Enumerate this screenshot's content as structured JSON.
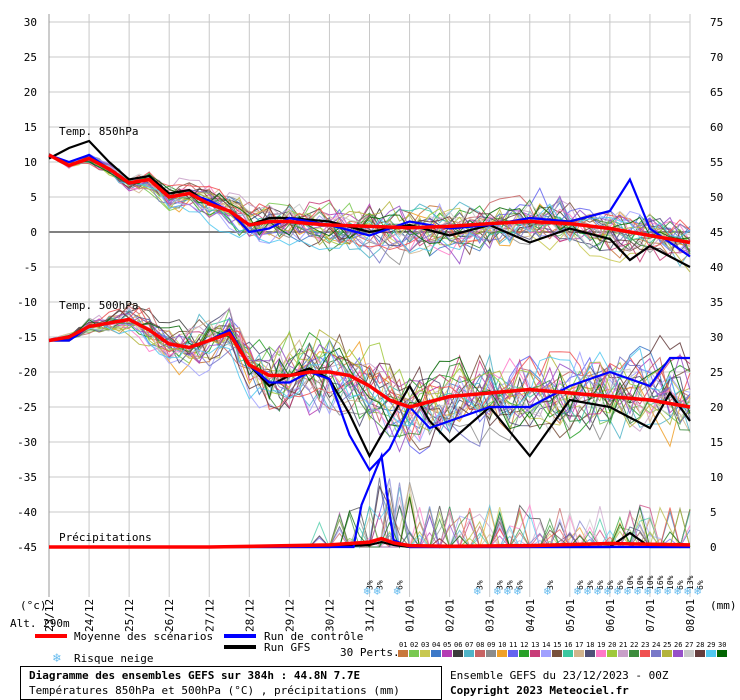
{
  "chart_data": {
    "type": "line",
    "left_axis": {
      "ticks": [
        30,
        25,
        20,
        15,
        10,
        5,
        0,
        -5,
        -10,
        -15,
        -20,
        -25,
        -30,
        -35,
        -40,
        -45
      ],
      "unit_label": "(°c)",
      "altitude_label": "Alt. 290m"
    },
    "right_axis": {
      "ticks": [
        75,
        70,
        65,
        60,
        55,
        50,
        45,
        40,
        35,
        30,
        25,
        20,
        15,
        10,
        5,
        0
      ],
      "unit_label": "(mm)"
    },
    "x_axis": {
      "dates": [
        "23/12",
        "24/12",
        "25/12",
        "26/12",
        "27/12",
        "28/12",
        "29/12",
        "30/12",
        "31/12",
        "01/01",
        "02/01",
        "03/01",
        "04/01",
        "05/01",
        "06/01",
        "07/01",
        "08/01"
      ]
    },
    "panels": [
      {
        "label": "Temp. 850hPa",
        "unit": "°C",
        "mean_x": [
          0,
          0.5,
          1,
          1.5,
          2,
          2.5,
          3,
          3.5,
          4,
          4.5,
          5,
          5.5,
          6,
          6.5,
          7,
          8,
          9,
          10,
          11,
          12,
          13,
          14,
          15,
          16
        ],
        "mean": [
          11,
          9.5,
          10.5,
          9,
          7,
          7.5,
          5,
          5.5,
          4,
          3,
          1,
          1.5,
          1.5,
          1.2,
          1,
          0.8,
          0.6,
          0.8,
          1.2,
          1.5,
          1.2,
          0.5,
          -0.5,
          -1.5
        ],
        "control_x": [
          0,
          0.5,
          1,
          1.5,
          2,
          2.5,
          3,
          3.5,
          4,
          4.5,
          5,
          5.5,
          6,
          7,
          8,
          9,
          10,
          11,
          12,
          13,
          14,
          14.5,
          15,
          16
        ],
        "control": [
          11,
          10,
          11,
          9,
          7,
          7.5,
          5,
          5.5,
          4.5,
          3,
          0,
          0.5,
          2,
          1,
          -0.5,
          1.5,
          0.5,
          1,
          2,
          1.5,
          3,
          7.5,
          0.5,
          -3.5
        ],
        "gfs_x": [
          0,
          0.5,
          1,
          1.5,
          2,
          2.5,
          3,
          3.5,
          4,
          4.5,
          5,
          5.5,
          6,
          7,
          8,
          9,
          10,
          11,
          12,
          13,
          14,
          14.5,
          15,
          16
        ],
        "gfs": [
          10.5,
          12,
          13,
          10,
          7.5,
          8,
          5.5,
          6,
          4,
          3,
          1,
          2,
          2,
          1.5,
          0,
          1,
          -0.5,
          1,
          -1.5,
          0.5,
          -1,
          -4,
          -2,
          -5
        ]
      },
      {
        "label": "Temp. 500hPa",
        "unit": "°C",
        "mean_x": [
          0,
          0.5,
          1,
          1.5,
          2,
          2.5,
          3,
          3.5,
          4,
          4.5,
          5,
          5.5,
          6,
          6.5,
          7,
          7.5,
          8,
          8.5,
          9,
          10,
          11,
          12,
          13,
          14,
          15,
          16
        ],
        "mean": [
          -15.5,
          -15,
          -13.5,
          -13,
          -12.5,
          -14,
          -16,
          -16.5,
          -15.5,
          -14.5,
          -19,
          -20.5,
          -20.5,
          -20,
          -20,
          -20.5,
          -22,
          -24,
          -25,
          -23.5,
          -23,
          -22.5,
          -23,
          -23.5,
          -24,
          -25
        ],
        "control_x": [
          0,
          0.5,
          1,
          1.5,
          2,
          2.5,
          3,
          3.5,
          4,
          4.5,
          5,
          5.5,
          6,
          6.5,
          7,
          7.5,
          8,
          8.5,
          9,
          9.5,
          10,
          11,
          12,
          13,
          14,
          15,
          15.5,
          16
        ],
        "control": [
          -15.5,
          -15.5,
          -13.5,
          -13,
          -12.5,
          -14,
          -16,
          -16.5,
          -15.5,
          -14,
          -19,
          -21.5,
          -21.5,
          -20,
          -21,
          -29,
          -34,
          -31,
          -25,
          -28,
          -27,
          -25,
          -25,
          -22,
          -20,
          -22,
          -18,
          -18
        ],
        "gfs_x": [
          0,
          0.5,
          1,
          1.5,
          2,
          2.5,
          3,
          3.5,
          4,
          4.5,
          5,
          5.5,
          6,
          6.5,
          7,
          7.5,
          8,
          8.5,
          9,
          9.5,
          10,
          11,
          12,
          13,
          14,
          15,
          15.5,
          16
        ],
        "gfs": [
          -15.5,
          -15.5,
          -13.5,
          -13,
          -12.5,
          -14,
          -16,
          -16.5,
          -15.5,
          -14,
          -19,
          -22,
          -20.5,
          -19.5,
          -21,
          -26,
          -32,
          -27,
          -22,
          -27,
          -30,
          -25,
          -32,
          -24,
          -25,
          -28,
          -23,
          -27
        ]
      },
      {
        "label": "Précipitations",
        "unit": "mm",
        "mean_x": [
          0,
          4,
          7,
          8,
          8.3,
          8.6,
          9,
          10,
          12,
          14,
          16
        ],
        "mean": [
          0,
          0,
          0.3,
          0.7,
          1.2,
          0.6,
          0.2,
          0.1,
          0.2,
          0.5,
          0.3
        ],
        "control_x": [
          0,
          7,
          7.6,
          7.8,
          8.3,
          8.6,
          9,
          10,
          16
        ],
        "control": [
          0,
          0,
          0,
          6,
          13,
          1,
          0,
          0,
          0
        ],
        "gfs_x": [
          0,
          7,
          8,
          8.3,
          8.6,
          9,
          10,
          12,
          14,
          14.5,
          15,
          16
        ],
        "gfs": [
          0,
          0,
          0.3,
          0.7,
          0.3,
          0,
          0,
          0,
          0,
          2,
          0,
          0
        ]
      }
    ]
  },
  "snow_risk": [
    {
      "x": 8.0,
      "pct": "3%"
    },
    {
      "x": 8.25,
      "pct": "3%"
    },
    {
      "x": 8.75,
      "pct": "6%"
    },
    {
      "x": 10.75,
      "pct": "3%"
    },
    {
      "x": 11.25,
      "pct": "3%"
    },
    {
      "x": 11.5,
      "pct": "3%"
    },
    {
      "x": 11.75,
      "pct": "6%"
    },
    {
      "x": 12.5,
      "pct": "3%"
    },
    {
      "x": 13.25,
      "pct": "6%"
    },
    {
      "x": 13.5,
      "pct": "3%"
    },
    {
      "x": 13.75,
      "pct": "6%"
    },
    {
      "x": 14.0,
      "pct": "6%"
    },
    {
      "x": 14.25,
      "pct": "6%"
    },
    {
      "x": 14.5,
      "pct": "10%"
    },
    {
      "x": 14.75,
      "pct": "10%"
    },
    {
      "x": 15.0,
      "pct": "10%"
    },
    {
      "x": 15.25,
      "pct": "16%"
    },
    {
      "x": 15.5,
      "pct": "10%"
    },
    {
      "x": 15.75,
      "pct": "6%"
    },
    {
      "x": 16.0,
      "pct": "13%"
    },
    {
      "x": 16.25,
      "pct": "6%"
    }
  ],
  "legend": {
    "mean": "Moyenne des scénarios",
    "control": "Run de contrôle",
    "gfs": "Run GFS",
    "snow": "Risque neige",
    "perts_label": "30 Perts.",
    "perts_numbers": [
      "01",
      "02",
      "03",
      "04",
      "05",
      "06",
      "07",
      "08",
      "09",
      "10",
      "11",
      "12",
      "13",
      "14",
      "15",
      "16",
      "17",
      "18",
      "19",
      "20",
      "21",
      "22",
      "23",
      "24",
      "25",
      "26",
      "27",
      "28",
      "29",
      "30"
    ],
    "perts_colors": [
      "#c8783c",
      "#78c850",
      "#c8c850",
      "#3c78c8",
      "#b43cb4",
      "#3c3c3c",
      "#50b4c8",
      "#c86464",
      "#8c8c8c",
      "#f0a028",
      "#6464f0",
      "#28a028",
      "#c83c78",
      "#a0a0ff",
      "#78503c",
      "#3cc8a0",
      "#d2b48c",
      "#505078",
      "#ff78c8",
      "#a0c83c",
      "#c8a0c8",
      "#3c8c3c",
      "#f05050",
      "#7878c8",
      "#b4b43c",
      "#9650c8",
      "#c8c8c8",
      "#643c3c",
      "#50c8f0",
      "#006400"
    ]
  },
  "footer": {
    "title": "Diagramme des ensembles GEFS sur 384h : 44.8N 7.7E",
    "subtitle": "Températures 850hPa et 500hPa (°C) , précipitations (mm)",
    "run": "Ensemble GEFS du 23/12/2023 - 00Z",
    "copyright": "Copyright 2023 Meteociel.fr"
  },
  "colors": {
    "mean": "#ff0000",
    "control": "#0000ff",
    "gfs": "#000000",
    "grid": "#c8c8c8",
    "snow": "#66bbee"
  }
}
